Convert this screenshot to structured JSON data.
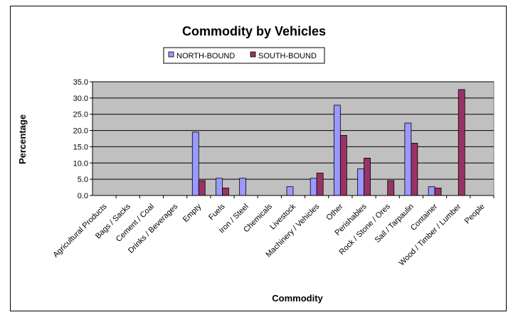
{
  "chart_data": {
    "type": "bar",
    "title": "Commodity by Vehicles",
    "xlabel": "Commodity",
    "ylabel": "Percentage",
    "ylim": [
      0,
      35
    ],
    "yticks": [
      "0.0",
      "5.0",
      "10.0",
      "15.0",
      "20.0",
      "25.0",
      "30.0",
      "35.0"
    ],
    "grid": true,
    "legend_position": "top",
    "categories": [
      "Agricultural Products",
      "Bags / Sacks",
      "Cement / Coal",
      "Drinks / Beverages",
      "Empty",
      "Fuels",
      "Iron / Steel",
      "Chemicals",
      "Livestock",
      "Machinery / Vehicles",
      "Other",
      "Perishables",
      "Rock / Stone / Ores",
      "Sail / Tarpaulin",
      "Container",
      "Wood / Timber / Lumber",
      "People"
    ],
    "series": [
      {
        "name": "NORTH-BOUND",
        "color": "#9999ff",
        "values": [
          0,
          0,
          0,
          0,
          19.5,
          5.3,
          5.3,
          0,
          2.7,
          5.3,
          27.8,
          8.2,
          0,
          22.3,
          2.7,
          0,
          0
        ]
      },
      {
        "name": "SOUTH-BOUND",
        "color": "#993366",
        "values": [
          0,
          0,
          0,
          0,
          4.6,
          2.3,
          0,
          0,
          0,
          6.9,
          18.5,
          11.5,
          4.6,
          16.1,
          2.3,
          32.6,
          0
        ]
      }
    ],
    "plot_background": "#c0c0c0"
  }
}
